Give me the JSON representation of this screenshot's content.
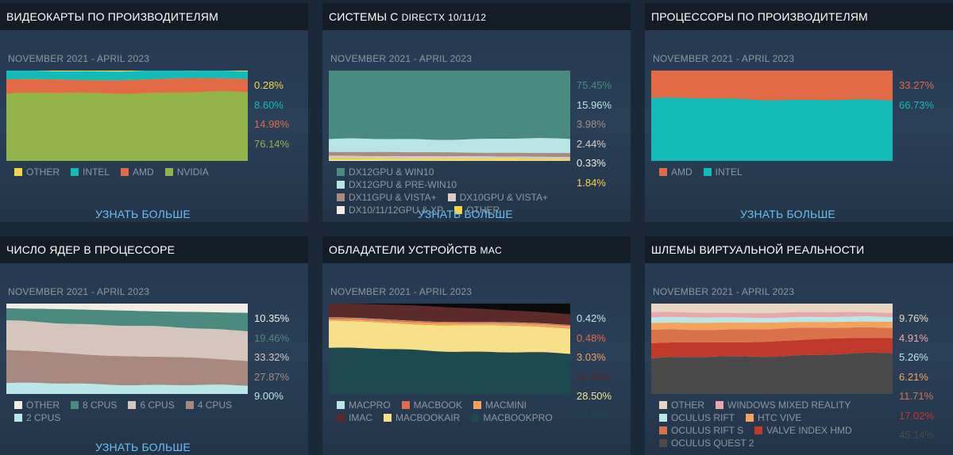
{
  "learn_more": "УЗНАТЬ БОЛЬШЕ",
  "chart_data": [
    {
      "id": "gpu",
      "type": "area",
      "title": "ВИДЕОКАРТЫ ПО ПРОИЗВОДИТЕЛЯМ",
      "period": "NOVEMBER 2021 - APRIL 2023",
      "stack_order": [
        "NVIDIA",
        "AMD",
        "INTEL",
        "OTHER"
      ],
      "series": [
        {
          "name": "OTHER",
          "color": "#f5d547",
          "start": 0.5,
          "end": 0.28,
          "label": "0.28%"
        },
        {
          "name": "INTEL",
          "color": "#12bab8",
          "start": 10.0,
          "end": 8.6,
          "label": "8.60%"
        },
        {
          "name": "AMD",
          "color": "#e26a44",
          "start": 15.0,
          "end": 14.98,
          "label": "14.98%"
        },
        {
          "name": "NVIDIA",
          "color": "#92b24a",
          "start": 74.5,
          "end": 76.14,
          "label": "76.14%"
        }
      ],
      "labels_order": [
        "OTHER",
        "INTEL",
        "AMD",
        "NVIDIA"
      ],
      "legend": [
        "OTHER",
        "INTEL",
        "AMD",
        "NVIDIA"
      ]
    },
    {
      "id": "directx",
      "type": "area",
      "title": "СИСТЕМЫ С",
      "title_small": "DIRECTX 10/11/12",
      "period": "NOVEMBER 2021 - APRIL 2023",
      "stack_order": [
        "DX10/11/12GPU & XP",
        "OTHER",
        "DX10GPU & VISTA+",
        "DX11GPU & VISTA+",
        "DX12GPU & PRE-WIN10",
        "DX12GPU & WIN10"
      ],
      "series": [
        {
          "name": "DX12GPU & WIN10",
          "color": "#4a8b80",
          "start": 76.0,
          "end": 75.45,
          "label": "75.45%"
        },
        {
          "name": "DX12GPU & PRE-WIN10",
          "color": "#b9e4e4",
          "start": 14.0,
          "end": 15.96,
          "label": "15.96%"
        },
        {
          "name": "DX11GPU & VISTA+",
          "color": "#a88c82",
          "start": 4.2,
          "end": 3.98,
          "label": "3.98%"
        },
        {
          "name": "DX10GPU & VISTA+",
          "color": "#dccbc4",
          "start": 2.6,
          "end": 2.44,
          "label": "2.44%"
        },
        {
          "name": "DX10/11/12GPU & XP",
          "color": "#f3ede0",
          "start": 0.9,
          "end": 0.33,
          "label": "0.33%"
        },
        {
          "name": "OTHER",
          "color": "#f5d547",
          "start": 2.3,
          "end": 1.84,
          "label": "1.84%"
        }
      ],
      "labels_order": [
        "DX12GPU & WIN10",
        "DX12GPU & PRE-WIN10",
        "DX11GPU & VISTA+",
        "DX10GPU & VISTA+",
        "DX10/11/12GPU & XP",
        "OTHER"
      ],
      "legend": [
        "DX12GPU & WIN10",
        "DX12GPU & PRE-WIN10",
        "DX11GPU & VISTA+",
        "DX10GPU & VISTA+",
        "DX10/11/12GPU & XP",
        "OTHER"
      ]
    },
    {
      "id": "cpu_vendor",
      "type": "area",
      "title": "ПРОЦЕССОРЫ ПО ПРОИЗВОДИТЕЛЯМ",
      "period": "NOVEMBER 2021 - APRIL 2023",
      "stack_order": [
        "INTEL",
        "AMD"
      ],
      "series": [
        {
          "name": "AMD",
          "color": "#e26a44",
          "start": 30.5,
          "end": 33.27,
          "label": "33.27%"
        },
        {
          "name": "INTEL",
          "color": "#12bab8",
          "start": 69.5,
          "end": 66.73,
          "label": "66.73%"
        }
      ],
      "labels_order": [
        "AMD",
        "INTEL"
      ],
      "legend": [
        "AMD",
        "INTEL"
      ]
    },
    {
      "id": "cores",
      "type": "area",
      "title": "ЧИСЛО ЯДЕР В ПРОЦЕССОРЕ",
      "period": "NOVEMBER 2021 - APRIL 2023",
      "stack_order": [
        "2 CPUS",
        "4 CPUS",
        "6 CPUS",
        "8 CPUS",
        "OTHER"
      ],
      "series": [
        {
          "name": "OTHER",
          "color": "#f4ece2",
          "start": 5.0,
          "end": 10.35,
          "label": "10.35%"
        },
        {
          "name": "8 CPUS",
          "color": "#4b8b7f",
          "start": 14.0,
          "end": 19.46,
          "label": "19.46%"
        },
        {
          "name": "6 CPUS",
          "color": "#d6c5bc",
          "start": 33.0,
          "end": 33.32,
          "label": "33.32%"
        },
        {
          "name": "4 CPUS",
          "color": "#a9887f",
          "start": 36.0,
          "end": 27.87,
          "label": "27.87%"
        },
        {
          "name": "2 CPUS",
          "color": "#b9e6e6",
          "start": 12.0,
          "end": 9.0,
          "label": "9.00%"
        }
      ],
      "labels_order": [
        "OTHER",
        "8 CPUS",
        "6 CPUS",
        "4 CPUS",
        "2 CPUS"
      ],
      "legend": [
        "OTHER",
        "8 CPUS",
        "6 CPUS",
        "4 CPUS",
        "2 CPUS"
      ]
    },
    {
      "id": "mac",
      "type": "area",
      "title": "ОБЛАДАТЕЛИ УСТРОЙСТВ",
      "title_small": "MAC",
      "period": "NOVEMBER 2021 - APRIL 2023",
      "stack_order": [
        "MACBOOKPRO",
        "MACBOOKAIR",
        "MACMINI",
        "MACBOOK",
        "MACPRO",
        "IMAC"
      ],
      "series": [
        {
          "name": "MACPRO",
          "color": "#b9e6e6",
          "start": 0.5,
          "end": 0.42,
          "label": "0.42%"
        },
        {
          "name": "MACBOOK",
          "color": "#e26a44",
          "start": 1.2,
          "end": 0.48,
          "label": "0.48%"
        },
        {
          "name": "MACMINI",
          "color": "#f4a25c",
          "start": 2.0,
          "end": 3.03,
          "label": "3.03%"
        },
        {
          "name": "IMAC",
          "color": "#5c2a28",
          "start": 13.5,
          "end": 11.4,
          "label": "11.40%"
        },
        {
          "name": "MACBOOKAIR",
          "color": "#f7e08a",
          "start": 29.5,
          "end": 28.5,
          "label": "28.50%"
        },
        {
          "name": "MACBOOKPRO",
          "color": "#1d4a4e",
          "start": 51.0,
          "end": 44.35,
          "label": "44.35%"
        }
      ],
      "black_top_end": 11.82,
      "labels_order": [
        "MACPRO",
        "MACBOOK",
        "MACMINI",
        "IMAC",
        "MACBOOKAIR",
        "MACBOOKPRO"
      ],
      "legend": [
        "MACPRO",
        "MACBOOK",
        "MACMINI",
        "IMAC",
        "MACBOOKAIR",
        "MACBOOKPRO"
      ]
    },
    {
      "id": "vr",
      "type": "area",
      "title": "ШЛЕМЫ ВИРТУАЛЬНОЙ РЕАЛЬНОСТИ",
      "period": "NOVEMBER 2021 - APRIL 2023",
      "stack_order": [
        "OCULUS QUEST 2",
        "VALVE INDEX HMD",
        "OCULUS RIFT S",
        "HTC VIVE",
        "OCULUS RIFT",
        "WINDOWS MIXED REALITY",
        "OTHER"
      ],
      "series": [
        {
          "name": "OTHER",
          "color": "#e8d6c2",
          "start": 10.0,
          "end": 9.76,
          "label": "9.76%"
        },
        {
          "name": "WINDOWS MIXED REALITY",
          "color": "#e8a7ae",
          "start": 5.5,
          "end": 4.91,
          "label": "4.91%"
        },
        {
          "name": "OCULUS RIFT",
          "color": "#b9e6e6",
          "start": 6.0,
          "end": 5.26,
          "label": "5.26%"
        },
        {
          "name": "HTC VIVE",
          "color": "#f4a25c",
          "start": 8.0,
          "end": 6.21,
          "label": "6.21%"
        },
        {
          "name": "OCULUS RIFT S",
          "color": "#d9714a",
          "start": 15.0,
          "end": 11.71,
          "label": "11.71%"
        },
        {
          "name": "VALVE INDEX HMD",
          "color": "#c0392b",
          "start": 16.0,
          "end": 17.02,
          "label": "17.02%"
        },
        {
          "name": "OCULUS QUEST 2",
          "color": "#4a4a4a",
          "start": 39.5,
          "end": 45.14,
          "label": "45.14%"
        }
      ],
      "labels_order": [
        "OTHER",
        "WINDOWS MIXED REALITY",
        "OCULUS RIFT",
        "HTC VIVE",
        "OCULUS RIFT S",
        "VALVE INDEX HMD",
        "OCULUS QUEST 2"
      ],
      "legend": [
        "OTHER",
        "WINDOWS MIXED REALITY",
        "OCULUS RIFT",
        "HTC VIVE",
        "OCULUS RIFT S",
        "VALVE INDEX HMD",
        "OCULUS QUEST 2"
      ]
    }
  ]
}
